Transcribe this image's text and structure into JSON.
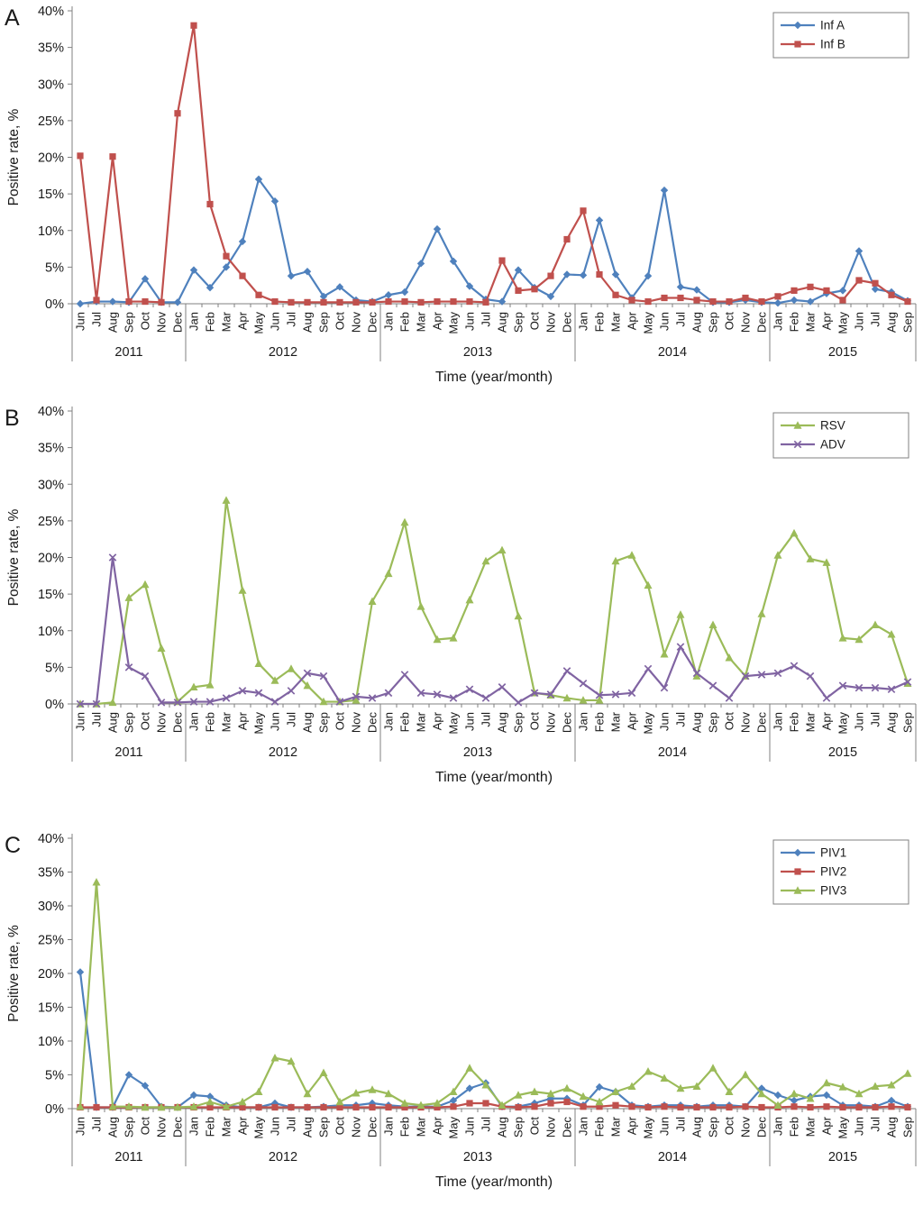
{
  "figure": {
    "x_axis_title": "Time (year/month)",
    "y_axis_label": "Positive rate, %",
    "y_ticks": [
      "0%",
      "5%",
      "10%",
      "15%",
      "20%",
      "25%",
      "30%",
      "35%",
      "40%"
    ],
    "y_max": 40,
    "categories": [
      "Jun",
      "Jul",
      "Aug",
      "Sep",
      "Oct",
      "Nov",
      "Dec",
      "Jan",
      "Feb",
      "Mar",
      "Apr",
      "May",
      "Jun",
      "Jul",
      "Aug",
      "Sep",
      "Oct",
      "Nov",
      "Dec",
      "Jan",
      "Feb",
      "Mar",
      "Apr",
      "May",
      "Jun",
      "Jul",
      "Aug",
      "Sep",
      "Oct",
      "Nov",
      "Dec",
      "Jan",
      "Feb",
      "Mar",
      "Apr",
      "May",
      "Jun",
      "Jul",
      "Aug",
      "Sep",
      "Oct",
      "Nov",
      "Dec",
      "Jan",
      "Feb",
      "Mar",
      "Apr",
      "May",
      "Jun",
      "Jul",
      "Aug",
      "Sep"
    ],
    "year_groups": [
      {
        "label": "2011",
        "months": 7
      },
      {
        "label": "2012",
        "months": 12
      },
      {
        "label": "2013",
        "months": 12
      },
      {
        "label": "2014",
        "months": 12
      },
      {
        "label": "2015",
        "months": 9
      }
    ]
  },
  "chart_data": [
    {
      "type": "line",
      "panel_label": "A",
      "xlabel": "Time (year/month)",
      "ylabel": "Positive rate, %",
      "ylim": [
        0,
        40
      ],
      "legend_position": "top-right",
      "series": [
        {
          "name": "Inf A",
          "color": "#4F81BD",
          "marker": "diamond",
          "values": [
            0,
            0.3,
            0.3,
            0.2,
            3.4,
            0.2,
            0.2,
            4.6,
            2.2,
            5,
            8.5,
            17,
            14,
            3.8,
            4.4,
            1,
            2.3,
            0.5,
            0.3,
            1.2,
            1.6,
            5.5,
            10.2,
            5.8,
            2.4,
            0.6,
            0.3,
            4.6,
            2.2,
            1,
            4,
            3.9,
            11.4,
            4,
            0.8,
            3.8,
            15.5,
            2.3,
            1.9,
            0.2,
            0.2,
            0.5,
            0.2,
            0.1,
            0.5,
            0.3,
            1.4,
            1.8,
            7.2,
            2,
            1.6,
            0.4
          ]
        },
        {
          "name": "Inf B",
          "color": "#C0504D",
          "marker": "square",
          "values": [
            20.2,
            0.5,
            20.1,
            0.3,
            0.3,
            0.2,
            26,
            38,
            13.6,
            6.5,
            3.8,
            1.2,
            0.3,
            0.2,
            0.2,
            0.2,
            0.2,
            0.2,
            0.2,
            0.3,
            0.3,
            0.2,
            0.3,
            0.3,
            0.3,
            0.2,
            5.9,
            1.8,
            2,
            3.8,
            8.8,
            12.7,
            4,
            1.2,
            0.5,
            0.3,
            0.8,
            0.8,
            0.5,
            0.3,
            0.3,
            0.8,
            0.3,
            1,
            1.8,
            2.3,
            1.8,
            0.5,
            3.2,
            2.8,
            1.2,
            0.3
          ]
        }
      ]
    },
    {
      "type": "line",
      "panel_label": "B",
      "xlabel": "Time (year/month)",
      "ylabel": "Positive rate, %",
      "ylim": [
        0,
        40
      ],
      "legend_position": "top-right",
      "series": [
        {
          "name": "RSV",
          "color": "#9BBB59",
          "marker": "triangle",
          "values": [
            0,
            0,
            0.2,
            14.5,
            16.3,
            7.6,
            0.3,
            2.3,
            2.6,
            27.8,
            15.5,
            5.5,
            3.2,
            4.8,
            2.5,
            0.3,
            0.3,
            0.5,
            14,
            17.8,
            24.8,
            13.3,
            8.8,
            9,
            14.2,
            19.5,
            21,
            12,
            1.5,
            1.2,
            0.8,
            0.5,
            0.5,
            19.5,
            20.3,
            16.2,
            6.8,
            12.2,
            3.8,
            10.8,
            6.3,
            3.8,
            12.3,
            20.3,
            23.3,
            19.8,
            19.3,
            9,
            8.8,
            10.8,
            9.5,
            2.8
          ]
        },
        {
          "name": "ADV",
          "color": "#8064A2",
          "marker": "x",
          "values": [
            0,
            0,
            20,
            5,
            3.8,
            0.2,
            0.2,
            0.3,
            0.3,
            0.8,
            1.8,
            1.5,
            0.3,
            1.8,
            4.2,
            3.8,
            0.3,
            1,
            0.8,
            1.5,
            4,
            1.5,
            1.3,
            0.8,
            2,
            0.8,
            2.3,
            0.2,
            1.5,
            1.3,
            4.5,
            2.8,
            1.2,
            1.3,
            1.5,
            4.8,
            2.2,
            7.8,
            4.2,
            2.5,
            0.8,
            3.8,
            4,
            4.2,
            5.2,
            3.8,
            0.8,
            2.5,
            2.2,
            2.2,
            2,
            3
          ]
        }
      ]
    },
    {
      "type": "line",
      "panel_label": "C",
      "xlabel": "Time (year/month)",
      "ylabel": "Positive rate, %",
      "ylim": [
        0,
        40
      ],
      "legend_position": "top-right",
      "series": [
        {
          "name": "PIV1",
          "color": "#4F81BD",
          "marker": "diamond",
          "values": [
            20.2,
            0.2,
            0.2,
            5,
            3.4,
            0.3,
            0.2,
            2,
            1.8,
            0.5,
            0.2,
            0.2,
            0.8,
            0.2,
            0.2,
            0.3,
            0.5,
            0.5,
            0.8,
            0.5,
            0.3,
            0.3,
            0.3,
            1.2,
            3,
            3.8,
            0.3,
            0.3,
            0.8,
            1.5,
            1.5,
            0.5,
            3.2,
            2.5,
            0.5,
            0.3,
            0.5,
            0.5,
            0.3,
            0.5,
            0.5,
            0.3,
            3,
            2,
            1.2,
            1.8,
            2,
            0.5,
            0.5,
            0.3,
            1.2,
            0.3
          ]
        },
        {
          "name": "PIV2",
          "color": "#C0504D",
          "marker": "square",
          "values": [
            0.2,
            0.2,
            0.2,
            0.2,
            0.2,
            0.2,
            0.2,
            0.2,
            0.2,
            0.2,
            0.2,
            0.2,
            0.2,
            0.2,
            0.2,
            0.2,
            0.2,
            0.2,
            0.2,
            0.2,
            0.2,
            0.2,
            0.2,
            0.3,
            0.8,
            0.8,
            0.3,
            0.2,
            0.3,
            0.8,
            1,
            0.3,
            0.3,
            0.5,
            0.3,
            0.2,
            0.3,
            0.2,
            0.2,
            0.2,
            0.2,
            0.3,
            0.2,
            0.2,
            0.3,
            0.2,
            0.3,
            0.2,
            0.2,
            0.2,
            0.3,
            0.2
          ]
        },
        {
          "name": "PIV3",
          "color": "#9BBB59",
          "marker": "triangle",
          "values": [
            0.3,
            33.5,
            0.3,
            0.3,
            0.2,
            0.2,
            0.2,
            0.3,
            1,
            0.3,
            1,
            2.5,
            7.5,
            7,
            2.2,
            5.3,
            1,
            2.3,
            2.8,
            2.2,
            0.8,
            0.5,
            0.8,
            2.5,
            6,
            3.5,
            0.5,
            2,
            2.5,
            2.2,
            3,
            1.8,
            1,
            2.5,
            3.3,
            5.5,
            4.5,
            3,
            3.3,
            6,
            2.5,
            5,
            2.2,
            0.5,
            2.2,
            1.5,
            3.8,
            3.2,
            2.2,
            3.3,
            3.5,
            5.2
          ]
        }
      ]
    }
  ]
}
